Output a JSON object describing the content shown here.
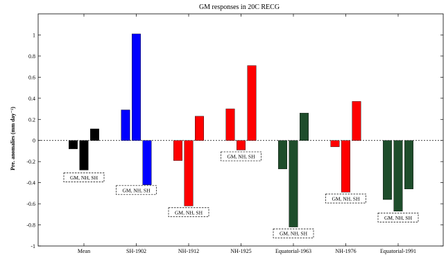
{
  "chart_data": {
    "type": "bar",
    "title": "GM responses in 20C RECG",
    "ylabel": "Pre. anomalies (mm day⁻¹)",
    "xlabel": "",
    "ylim": [
      -1,
      1.2
    ],
    "yticks": [
      "-1",
      "-0.8",
      "-0.6",
      "-0.4",
      "-0.2",
      "0",
      "0.2",
      "0.4",
      "0.6",
      "0.8",
      "1"
    ],
    "ytick_values": [
      -1,
      -0.8,
      -0.6,
      -0.4,
      -0.2,
      0,
      0.2,
      0.4,
      0.6,
      0.8,
      1
    ],
    "grid": false,
    "bar_labels": [
      "GM",
      "NH",
      "SH"
    ],
    "categories": [
      {
        "name": "Mean",
        "values": [
          -0.08,
          -0.28,
          0.11
        ],
        "color": "#000000",
        "annotation": "GM, NH, SH",
        "annotation_y": -0.35
      },
      {
        "name": "SH-1902",
        "values": [
          0.29,
          1.01,
          -0.42
        ],
        "color": "#0000ff",
        "annotation": "GM, NH, SH",
        "annotation_y": -0.47
      },
      {
        "name": "NH-1912",
        "values": [
          -0.19,
          -0.62,
          0.23
        ],
        "color": "#ff0000",
        "annotation": "GM, NH, SH",
        "annotation_y": -0.68
      },
      {
        "name": "NH-1925",
        "values": [
          0.3,
          -0.09,
          0.71
        ],
        "color": "#ff0000",
        "annotation": "GM, NH, SH",
        "annotation_y": -0.15
      },
      {
        "name": "Equatorial-1963",
        "values": [
          -0.27,
          -0.82,
          0.26
        ],
        "color": "#1e4d2b",
        "annotation": "GM, NH, SH",
        "annotation_y": -0.88
      },
      {
        "name": "NH-1976",
        "values": [
          -0.06,
          -0.49,
          0.37
        ],
        "color": "#ff0000",
        "annotation": "GM, NH, SH",
        "annotation_y": -0.55
      },
      {
        "name": "Equatorial-1991",
        "values": [
          -0.56,
          -0.67,
          -0.46
        ],
        "color": "#1e4d2b",
        "annotation": "GM, NH, SH",
        "annotation_y": -0.73
      }
    ]
  }
}
